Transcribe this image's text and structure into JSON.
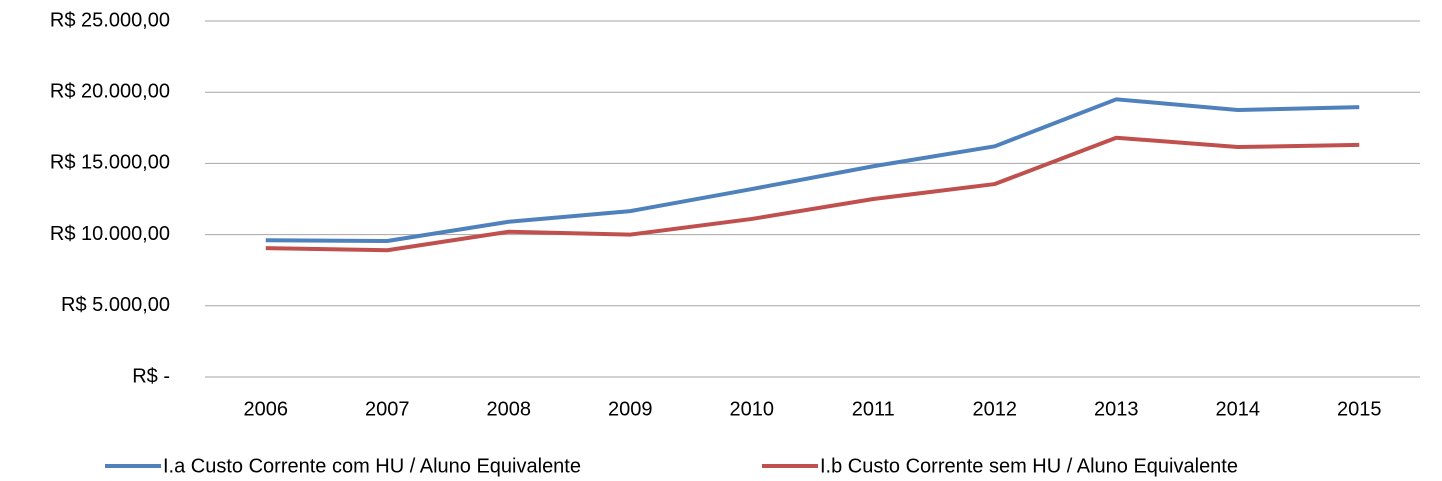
{
  "chart_data": {
    "type": "line",
    "categories": [
      "2006",
      "2007",
      "2008",
      "2009",
      "2010",
      "2011",
      "2012",
      "2013",
      "2014",
      "2015"
    ],
    "series": [
      {
        "name": "I.a Custo Corrente com HU / Aluno Equivalente",
        "color": "#4f81bd",
        "values": [
          9600,
          9550,
          10900,
          11650,
          13200,
          14800,
          16200,
          19500,
          18750,
          18950
        ]
      },
      {
        "name": "I.b Custo Corrente sem HU / Aluno Equivalente",
        "color": "#c0504d",
        "values": [
          9050,
          8900,
          10200,
          10000,
          11100,
          12500,
          13550,
          16800,
          16150,
          16300
        ]
      }
    ],
    "ylim": [
      0,
      25000
    ],
    "yticks": [
      {
        "value": 0,
        "label": "R$ -"
      },
      {
        "value": 5000,
        "label": "R$ 5.000,00"
      },
      {
        "value": 10000,
        "label": "R$ 10.000,00"
      },
      {
        "value": 15000,
        "label": "R$ 15.000,00"
      },
      {
        "value": 20000,
        "label": "R$ 20.000,00"
      },
      {
        "value": 25000,
        "label": "R$ 25.000,00"
      }
    ],
    "grid": true,
    "legend": "bottom"
  }
}
